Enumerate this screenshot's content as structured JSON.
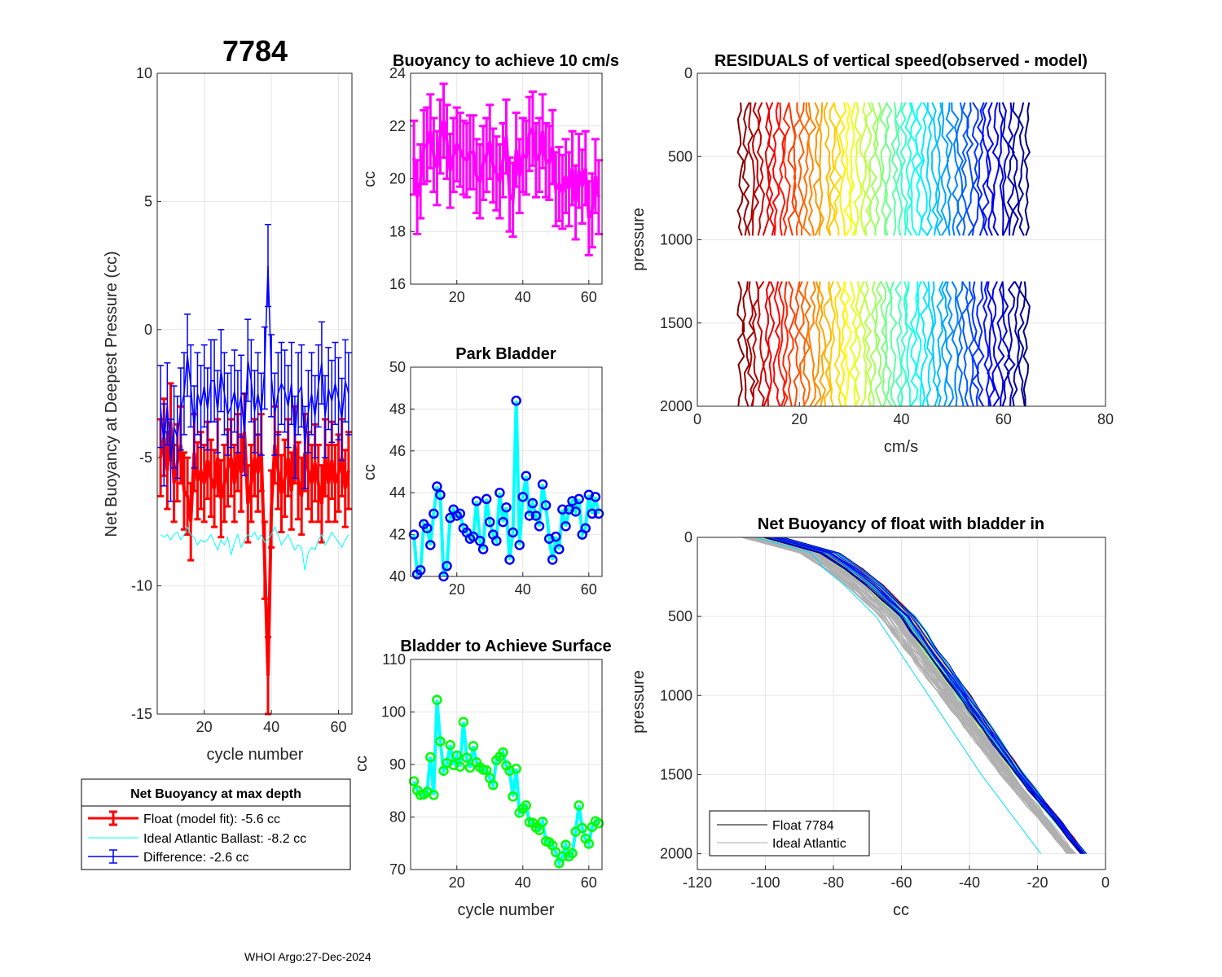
{
  "figure_title": "7784",
  "footer": "WHOI Argo:27-Dec-2024",
  "colors": {
    "float": "#ff0000",
    "ideal": "#00ffff",
    "difference": "#0000ff",
    "buoyancy": "#ff00ff",
    "park_marker": "#0000ff",
    "surface_marker": "#00ff00",
    "line_cyan": "#00ffff"
  },
  "chart_data": [
    {
      "id": "net_buoyancy",
      "type": "line",
      "title": "",
      "xlabel": "cycle number",
      "ylabel": "Net Buoyancy at Deepest Pressure (cc)",
      "xlim": [
        6,
        64
      ],
      "ylim": [
        -15,
        10
      ],
      "xticks": [
        20,
        40,
        60
      ],
      "yticks": [
        -15,
        -10,
        -5,
        0,
        5,
        10
      ],
      "grid": true,
      "x": [
        7,
        8,
        9,
        10,
        11,
        12,
        13,
        14,
        15,
        16,
        17,
        18,
        19,
        20,
        21,
        22,
        23,
        24,
        25,
        26,
        27,
        28,
        29,
        30,
        31,
        32,
        33,
        34,
        35,
        36,
        37,
        38,
        39,
        40,
        41,
        42,
        43,
        44,
        45,
        46,
        47,
        48,
        49,
        50,
        51,
        52,
        53,
        54,
        55,
        56,
        57,
        58,
        59,
        60,
        61,
        62,
        63
      ],
      "series": [
        {
          "name": "Float (model fit)",
          "error": 1.5,
          "values": [
            -5.0,
            -4.2,
            -5.5,
            -3.6,
            -6.0,
            -5.2,
            -4.5,
            -6.3,
            -6.5,
            -7.5,
            -4.8,
            -5.9,
            -5.5,
            -6.0,
            -5.1,
            -5.8,
            -6.2,
            -5.0,
            -6.6,
            -6.0,
            -5.4,
            -5.0,
            -6.0,
            -4.8,
            -5.6,
            -4.0,
            -6.8,
            -6.0,
            -5.0,
            -5.6,
            -4.8,
            -9.0,
            -13.5,
            -7.0,
            -4.5,
            -5.5,
            -6.4,
            -5.8,
            -5.0,
            -6.3,
            -4.5,
            -5.9,
            -6.5,
            -4.8,
            -5.5,
            -6.0,
            -5.2,
            -6.0,
            -6.8,
            -5.0,
            -6.0,
            -5.1,
            -6.0,
            -5.6,
            -5.0,
            -6.2,
            -5.5
          ]
        },
        {
          "name": "Ideal Atlantic Ballast",
          "values": [
            -8.0,
            -8.1,
            -8.0,
            -8.2,
            -8.0,
            -7.9,
            -8.2,
            -8.0,
            -7.7,
            -8.0,
            -8.1,
            -8.4,
            -8.2,
            -8.3,
            -8.2,
            -8.0,
            -8.3,
            -8.6,
            -8.2,
            -8.4,
            -8.1,
            -8.8,
            -8.3,
            -8.0,
            -8.5,
            -8.2,
            -8.0,
            -8.1,
            -7.9,
            -8.2,
            -8.0,
            -8.3,
            -8.2,
            -8.0,
            -7.7,
            -8.0,
            -8.4,
            -8.2,
            -8.0,
            -8.3,
            -8.6,
            -8.4,
            -8.5,
            -9.4,
            -8.7,
            -8.5,
            -8.6,
            -8.2,
            -8.0,
            -8.4,
            -8.2,
            -7.9,
            -8.1,
            -8.3,
            -8.5,
            -8.2,
            -8.0
          ]
        },
        {
          "name": "Difference",
          "error": 1.6,
          "values": [
            -3.0,
            -4.5,
            -2.9,
            -5.1,
            -3.8,
            -4.2,
            -3.1,
            -2.5,
            -1.0,
            -2.2,
            -3.8,
            -2.5,
            -3.0,
            -2.2,
            -3.1,
            -2.0,
            -2.0,
            -3.2,
            -1.6,
            -2.5,
            -3.3,
            -3.0,
            -2.4,
            -3.2,
            -2.6,
            -4.1,
            -1.2,
            -2.0,
            -3.2,
            -2.5,
            -3.3,
            -1.5,
            2.5,
            -1.8,
            -3.3,
            -2.5,
            -2.1,
            -2.4,
            -3.0,
            -2.1,
            -4.2,
            -2.5,
            -2.2,
            -4.6,
            -3.2,
            -2.5,
            -3.4,
            -2.2,
            -1.3,
            -3.4,
            -2.3,
            -2.8,
            -2.1,
            -2.7,
            -3.5,
            -2.0,
            -2.5
          ]
        }
      ],
      "legend": {
        "title": "Net Buoyancy at max depth",
        "entries": [
          "Float (model fit):  -5.6 cc",
          "Ideal Atlantic Ballast:  -8.2 cc",
          "Difference:  -2.6 cc"
        ]
      }
    },
    {
      "id": "buoyancy_10cms",
      "type": "line",
      "title": "Buoyancy to achieve 10 cm/s",
      "xlabel": "",
      "ylabel": "cc",
      "xlim": [
        6,
        64
      ],
      "ylim": [
        16,
        24
      ],
      "xticks": [
        20,
        40,
        60
      ],
      "yticks": [
        16,
        18,
        20,
        22,
        24
      ],
      "grid": true,
      "error": 1.4,
      "x": [
        7,
        8,
        9,
        10,
        11,
        12,
        13,
        14,
        15,
        16,
        17,
        18,
        19,
        20,
        21,
        22,
        23,
        24,
        25,
        26,
        27,
        28,
        29,
        30,
        31,
        32,
        33,
        34,
        35,
        36,
        37,
        38,
        39,
        40,
        41,
        42,
        43,
        44,
        45,
        46,
        47,
        48,
        49,
        50,
        51,
        52,
        53,
        54,
        55,
        56,
        57,
        58,
        59,
        60,
        61,
        62,
        63
      ],
      "values": [
        20.8,
        19.3,
        19.9,
        21.2,
        21.3,
        21.8,
        20.9,
        20.4,
        21.6,
        22.2,
        21.4,
        20.3,
        20.9,
        21.3,
        21.1,
        20.8,
        20.7,
        21.0,
        21.0,
        20.1,
        19.9,
        20.6,
        20.9,
        21.4,
        20.5,
        20.2,
        19.9,
        20.7,
        21.6,
        19.4,
        19.2,
        21.1,
        20.1,
        20.9,
        20.8,
        21.7,
        21.9,
        20.7,
        20.9,
        21.8,
        20.7,
        20.6,
        21.2,
        19.6,
        19.8,
        19.5,
        20.1,
        19.6,
        20.4,
        19.1,
        20.3,
        19.7,
        20.4,
        18.5,
        18.8,
        20.1,
        19.3
      ]
    },
    {
      "id": "park_bladder",
      "type": "line",
      "title": "Park Bladder",
      "xlabel": "",
      "ylabel": "cc",
      "xlim": [
        6,
        64
      ],
      "ylim": [
        40,
        50
      ],
      "xticks": [
        20,
        40,
        60
      ],
      "yticks": [
        40,
        42,
        44,
        46,
        48,
        50
      ],
      "grid": true,
      "x": [
        7,
        8,
        9,
        10,
        11,
        12,
        13,
        14,
        15,
        16,
        17,
        18,
        19,
        20,
        21,
        22,
        23,
        24,
        25,
        26,
        27,
        28,
        29,
        30,
        31,
        32,
        33,
        34,
        35,
        36,
        37,
        38,
        39,
        40,
        41,
        42,
        43,
        44,
        45,
        46,
        47,
        48,
        49,
        50,
        51,
        52,
        53,
        54,
        55,
        56,
        57,
        58,
        59,
        60,
        61,
        62,
        63
      ],
      "values": [
        42.0,
        40.1,
        40.3,
        42.5,
        42.3,
        41.5,
        43.0,
        44.3,
        43.9,
        40.0,
        40.5,
        42.8,
        43.2,
        42.9,
        43.0,
        42.3,
        42.1,
        41.8,
        41.9,
        43.6,
        41.7,
        41.3,
        43.7,
        42.6,
        42.0,
        41.7,
        44.0,
        42.6,
        43.3,
        40.8,
        42.1,
        48.4,
        41.5,
        43.8,
        44.8,
        42.9,
        43.5,
        42.9,
        42.4,
        44.4,
        43.4,
        41.8,
        40.8,
        41.9,
        41.3,
        43.2,
        42.4,
        43.2,
        43.6,
        43.1,
        43.7,
        42.0,
        42.3,
        43.9,
        43.0,
        43.8,
        43.0
      ]
    },
    {
      "id": "bladder_surface",
      "type": "line",
      "title": "Bladder to Achieve Surface",
      "xlabel": "cycle number",
      "ylabel": "cc",
      "xlim": [
        6,
        64
      ],
      "ylim": [
        70,
        110
      ],
      "xticks": [
        20,
        40,
        60
      ],
      "yticks": [
        70,
        80,
        90,
        100,
        110
      ],
      "grid": true,
      "x": [
        7,
        8,
        9,
        10,
        11,
        12,
        13,
        14,
        15,
        16,
        17,
        18,
        19,
        20,
        21,
        22,
        23,
        24,
        25,
        26,
        27,
        28,
        29,
        30,
        31,
        32,
        33,
        34,
        35,
        36,
        37,
        38,
        39,
        40,
        41,
        42,
        43,
        44,
        45,
        46,
        47,
        48,
        49,
        50,
        51,
        52,
        53,
        54,
        55,
        56,
        57,
        58,
        59,
        60,
        61,
        62,
        63
      ],
      "values": [
        86.8,
        85.1,
        84.2,
        84.3,
        84.8,
        91.4,
        84.2,
        102.3,
        94.4,
        88.8,
        90.3,
        93.7,
        89.9,
        91.7,
        89.6,
        98.1,
        91.3,
        89.4,
        93.5,
        90.4,
        89.5,
        89.0,
        88.9,
        87.4,
        86.1,
        90.8,
        91.5,
        92.3,
        89.8,
        88.8,
        83.9,
        89.2,
        80.8,
        81.6,
        82.2,
        79.0,
        78.9,
        78.0,
        77.5,
        79.1,
        75.4,
        75.2,
        74.6,
        73.3,
        71.2,
        72.5,
        74.7,
        72.5,
        73.1,
        77.2,
        82.2,
        77.9,
        75.9,
        74.9,
        78.1,
        79.2,
        78.8
      ]
    },
    {
      "id": "residuals",
      "type": "line",
      "title": "RESIDUALS of vertical speed(observed - model)",
      "xlabel": "cm/s",
      "ylabel": "pressure",
      "xlim": [
        0,
        80
      ],
      "ylim": [
        2000,
        0
      ],
      "xticks": [
        0,
        20,
        40,
        60,
        80
      ],
      "yticks": [
        0,
        500,
        1000,
        1500,
        2000
      ],
      "grid": true,
      "profile_count": 57,
      "x_offset_start": 8.5,
      "x_offset_step": 1.0,
      "pressure_bands": [
        [
          175,
          1000
        ],
        [
          1250,
          2000
        ]
      ]
    },
    {
      "id": "net_buoyancy_bladder_in",
      "type": "line",
      "title": "Net Buoyancy of float with bladder in",
      "xlabel": "cc",
      "ylabel": "pressure",
      "xlim": [
        -120,
        0
      ],
      "ylim": [
        2100,
        0
      ],
      "xticks": [
        -120,
        -100,
        -80,
        -60,
        -40,
        -20,
        0
      ],
      "yticks": [
        0,
        500,
        1000,
        1500,
        2000
      ],
      "grid": true,
      "reference_profile": {
        "pressure": [
          0,
          50,
          150,
          300,
          500,
          1000,
          1500,
          2000
        ],
        "cc": [
          -103,
          -90,
          -82,
          -73,
          -63,
          -46,
          -29,
          -10
        ]
      },
      "legend": {
        "entries": [
          "Float 7784",
          "Ideal Atlantic"
        ]
      }
    }
  ]
}
